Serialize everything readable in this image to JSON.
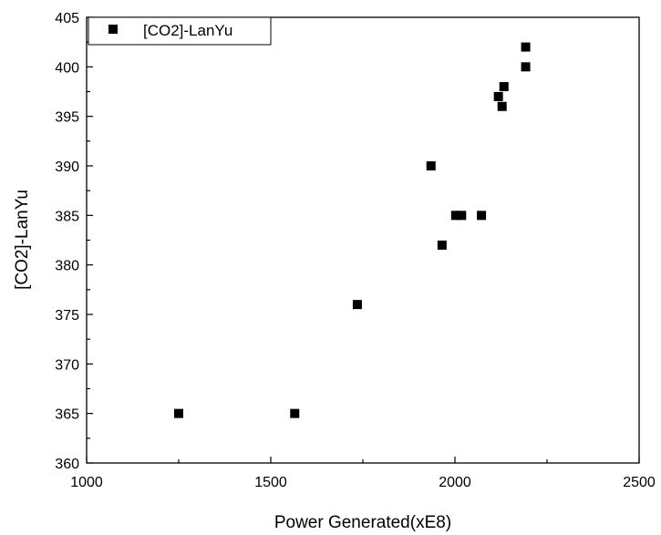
{
  "chart_data": {
    "type": "scatter",
    "title": "",
    "xlabel": "Power Generated(xE8)",
    "ylabel": "[CO2]-LanYu",
    "xlim": [
      1000,
      2500
    ],
    "ylim": [
      360,
      405
    ],
    "xticks": [
      1000,
      1500,
      2000,
      2500
    ],
    "yticks": [
      360,
      365,
      370,
      375,
      380,
      385,
      390,
      395,
      400,
      405
    ],
    "grid": false,
    "legend_position": "top-left",
    "series": [
      {
        "name": "[CO2]-LanYu",
        "color": "#000000",
        "marker": "square",
        "points": [
          {
            "x": 1250,
            "y": 365
          },
          {
            "x": 1565,
            "y": 365
          },
          {
            "x": 1735,
            "y": 376
          },
          {
            "x": 1935,
            "y": 390
          },
          {
            "x": 1965,
            "y": 382
          },
          {
            "x": 2002,
            "y": 385
          },
          {
            "x": 2018,
            "y": 385
          },
          {
            "x": 2072,
            "y": 385
          },
          {
            "x": 2118,
            "y": 397
          },
          {
            "x": 2128,
            "y": 396
          },
          {
            "x": 2133,
            "y": 398
          },
          {
            "x": 2192,
            "y": 402
          },
          {
            "x": 2192,
            "y": 400
          }
        ]
      }
    ]
  }
}
